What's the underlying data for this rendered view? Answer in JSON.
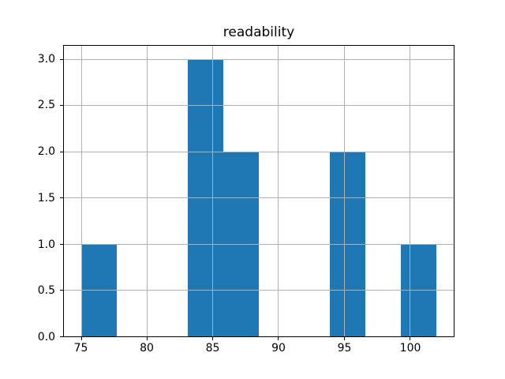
{
  "chart_data": {
    "type": "bar",
    "subtype": "histogram",
    "title": "readability",
    "xlabel": "",
    "ylabel": "",
    "bin_edges": [
      75,
      77.7,
      80.4,
      83.1,
      85.8,
      88.5,
      91.2,
      93.9,
      96.6,
      99.3,
      102
    ],
    "counts": [
      1,
      0,
      0,
      3,
      2,
      0,
      0,
      2,
      0,
      1
    ],
    "xlim": [
      73.65,
      103.35
    ],
    "ylim": [
      0,
      3.15
    ],
    "x_ticks": [
      75,
      80,
      85,
      90,
      95,
      100
    ],
    "x_tick_labels": [
      "75",
      "80",
      "85",
      "90",
      "95",
      "100"
    ],
    "y_ticks": [
      0.0,
      0.5,
      1.0,
      1.5,
      2.0,
      2.5,
      3.0
    ],
    "y_tick_labels": [
      "0.0",
      "0.5",
      "1.0",
      "1.5",
      "2.0",
      "2.5",
      "3.0"
    ],
    "grid": true,
    "grid_over_bars": true,
    "legend": null,
    "colors": {
      "bar": "#1f77b4",
      "grid": "#b0b0b0",
      "spine": "#000000",
      "background": "#ffffff",
      "text": "#000000"
    }
  }
}
